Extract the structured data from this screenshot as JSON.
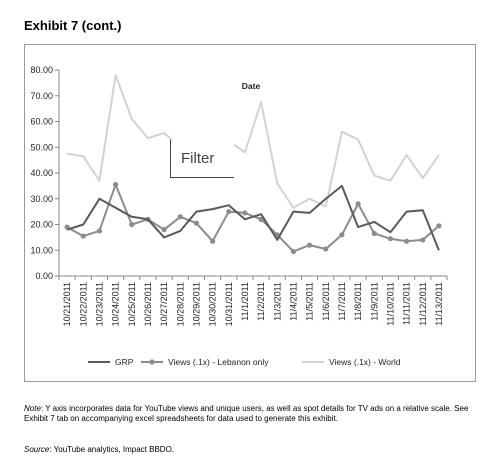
{
  "header": {
    "title": "Exhibit 7 (cont.)"
  },
  "filter_popup": {
    "label": "Filter"
  },
  "footnote": {
    "note_prefix": "Note",
    "note_text": ": Y axis incorporates data for YouTube views and unique users, as well as spot details for TV ads on a relative scale. See Exhibit 7 tab on accompanying excel spreadsheets for data used to generate this exhibit.",
    "source_prefix": "Source",
    "source_text": ": YouTube analytics, Impact BBDO."
  },
  "chart_data": {
    "type": "line",
    "title": "",
    "xlabel": "Date",
    "ylabel": "",
    "ylim": [
      0,
      80
    ],
    "yticks": [
      "0.00",
      "10.00",
      "20.00",
      "30.00",
      "40.00",
      "50.00",
      "60.00",
      "70.00",
      "80.00"
    ],
    "grid": false,
    "legend_position": "bottom",
    "x": [
      "10/21/2011",
      "10/22/2011",
      "10/23/2011",
      "10/24/2011",
      "10/25/2011",
      "10/26/2011",
      "10/27/2011",
      "10/28/2011",
      "10/29/2011",
      "10/30/2011",
      "10/31/2011",
      "11/1/2011",
      "11/2/2011",
      "11/3/2011",
      "11/4/2011",
      "11/5/2011",
      "11/6/2011",
      "11/7/2011",
      "11/8/2011",
      "11/9/2011",
      "11/10/2011",
      "11/11/2011",
      "11/12/2011",
      "11/13/2011"
    ],
    "series": [
      {
        "name": "GRP",
        "color": "#5a5a5a",
        "marker": "none",
        "values": [
          18,
          20,
          30,
          26.5,
          23,
          22,
          15,
          17.5,
          25,
          26,
          27.5,
          22,
          24,
          14,
          25,
          24.5,
          30,
          35,
          19,
          21,
          17,
          25,
          25.5,
          10
        ]
      },
      {
        "name": "Views (.1x) - Lebanon only",
        "color": "#8c8c8c",
        "marker": "circle",
        "values": [
          19,
          15.5,
          17.5,
          35.5,
          20,
          22,
          18,
          23,
          20.5,
          13.5,
          25,
          24.5,
          22,
          16,
          9.5,
          12,
          10.5,
          16,
          28,
          16.5,
          14.5,
          13.5,
          14,
          19.5
        ]
      },
      {
        "name": "Views (.1x) - World",
        "color": "#d2d2d2",
        "marker": "none",
        "values": [
          47.5,
          46.5,
          37,
          78,
          61,
          53.5,
          55.5,
          50,
          52,
          49,
          52.5,
          48,
          67.5,
          36,
          26.5,
          30,
          27,
          56,
          53,
          39,
          37,
          47,
          38,
          47
        ]
      }
    ]
  }
}
